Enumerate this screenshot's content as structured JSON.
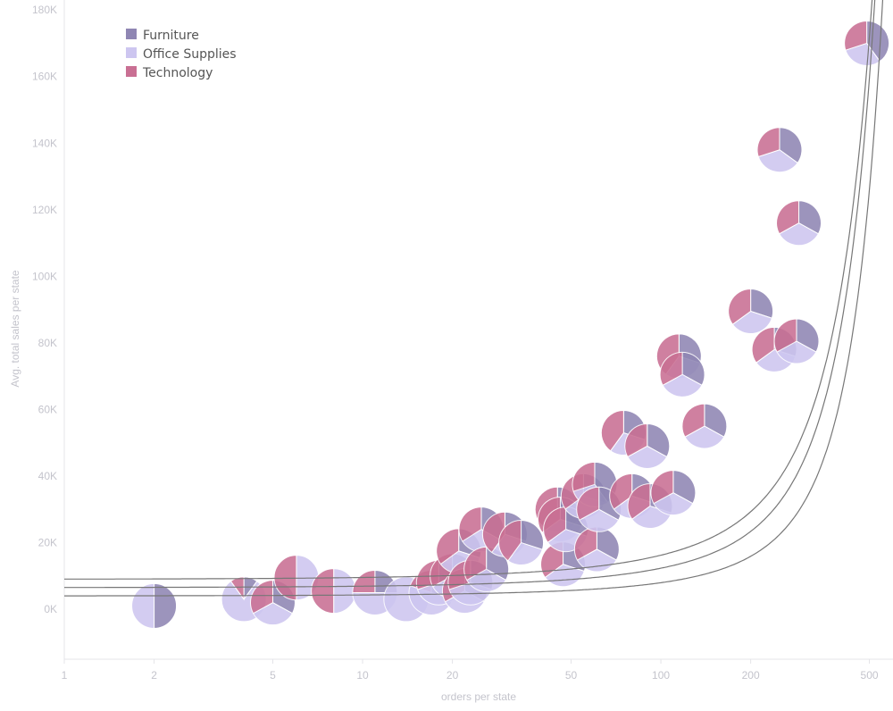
{
  "chart_data": {
    "type": "scatter",
    "subtype": "pie-markers",
    "xlabel": "orders per state",
    "ylabel": "Avg. total sales per state",
    "x_scale": "log",
    "xlim": [
      1,
      600
    ],
    "ylim": [
      -15000,
      183000
    ],
    "x_ticks": [
      1,
      2,
      5,
      10,
      20,
      50,
      100,
      200,
      500
    ],
    "y_ticks": [
      0,
      20000,
      40000,
      60000,
      80000,
      100000,
      120000,
      140000,
      160000,
      180000
    ],
    "y_tick_labels": [
      "0K",
      "20K",
      "40K",
      "60K",
      "80K",
      "100K",
      "120K",
      "140K",
      "160K",
      "180K"
    ],
    "grid": false,
    "legend_position": "top-left",
    "series": [
      {
        "name": "Furniture",
        "color": "#8f86b3"
      },
      {
        "name": "Office Supplies",
        "color": "#cdc6f0"
      },
      {
        "name": "Technology",
        "color": "#c96f93"
      }
    ],
    "points": [
      {
        "x": 2,
        "y": 1000,
        "shares": [
          0.5,
          0.5,
          0
        ]
      },
      {
        "x": 4,
        "y": 3000,
        "shares": [
          0.1,
          0.8,
          0.1
        ]
      },
      {
        "x": 5,
        "y": 2000,
        "shares": [
          0.33,
          0.34,
          0.33
        ]
      },
      {
        "x": 6,
        "y": 9500,
        "shares": [
          0,
          0.5,
          0.5
        ]
      },
      {
        "x": 8,
        "y": 5500,
        "shares": [
          0,
          0.5,
          0.5
        ]
      },
      {
        "x": 11,
        "y": 5000,
        "shares": [
          0.25,
          0.5,
          0.25
        ]
      },
      {
        "x": 14,
        "y": 3000,
        "shares": [
          0,
          1,
          0
        ]
      },
      {
        "x": 17,
        "y": 5000,
        "shares": [
          0.3,
          0.5,
          0.2
        ]
      },
      {
        "x": 18,
        "y": 8000,
        "shares": [
          0.3,
          0.4,
          0.3
        ]
      },
      {
        "x": 20,
        "y": 10000,
        "shares": [
          0.33,
          0.34,
          0.33
        ]
      },
      {
        "x": 21,
        "y": 17500,
        "shares": [
          0.3,
          0.35,
          0.35
        ]
      },
      {
        "x": 22,
        "y": 5500,
        "shares": [
          0.33,
          0.34,
          0.33
        ]
      },
      {
        "x": 23,
        "y": 8000,
        "shares": [
          0.3,
          0.4,
          0.3
        ]
      },
      {
        "x": 25,
        "y": 24000,
        "shares": [
          0.33,
          0.33,
          0.34
        ]
      },
      {
        "x": 26,
        "y": 12000,
        "shares": [
          0.33,
          0.34,
          0.33
        ]
      },
      {
        "x": 30,
        "y": 22500,
        "shares": [
          0.3,
          0.3,
          0.4
        ]
      },
      {
        "x": 34,
        "y": 20000,
        "shares": [
          0.3,
          0.3,
          0.4
        ]
      },
      {
        "x": 45,
        "y": 30000,
        "shares": [
          0.25,
          0.35,
          0.4
        ]
      },
      {
        "x": 46,
        "y": 27000,
        "shares": [
          0.3,
          0.35,
          0.35
        ]
      },
      {
        "x": 47,
        "y": 13500,
        "shares": [
          0.3,
          0.35,
          0.35
        ]
      },
      {
        "x": 48,
        "y": 24000,
        "shares": [
          0.3,
          0.35,
          0.35
        ]
      },
      {
        "x": 55,
        "y": 34000,
        "shares": [
          0.3,
          0.35,
          0.35
        ]
      },
      {
        "x": 60,
        "y": 37500,
        "shares": [
          0.4,
          0.3,
          0.3
        ]
      },
      {
        "x": 61,
        "y": 18000,
        "shares": [
          0.33,
          0.34,
          0.33
        ]
      },
      {
        "x": 62,
        "y": 30000,
        "shares": [
          0.33,
          0.34,
          0.33
        ]
      },
      {
        "x": 75,
        "y": 53000,
        "shares": [
          0.3,
          0.3,
          0.4
        ]
      },
      {
        "x": 80,
        "y": 34000,
        "shares": [
          0.3,
          0.35,
          0.35
        ]
      },
      {
        "x": 90,
        "y": 49000,
        "shares": [
          0.33,
          0.34,
          0.33
        ]
      },
      {
        "x": 92,
        "y": 31000,
        "shares": [
          0.3,
          0.35,
          0.35
        ]
      },
      {
        "x": 110,
        "y": 35000,
        "shares": [
          0.33,
          0.34,
          0.33
        ]
      },
      {
        "x": 115,
        "y": 76000,
        "shares": [
          0.3,
          0.3,
          0.4
        ]
      },
      {
        "x": 118,
        "y": 70500,
        "shares": [
          0.33,
          0.34,
          0.33
        ]
      },
      {
        "x": 140,
        "y": 55000,
        "shares": [
          0.33,
          0.34,
          0.33
        ]
      },
      {
        "x": 200,
        "y": 89500,
        "shares": [
          0.3,
          0.35,
          0.35
        ]
      },
      {
        "x": 240,
        "y": 78000,
        "shares": [
          0.3,
          0.35,
          0.35
        ]
      },
      {
        "x": 250,
        "y": 138000,
        "shares": [
          0.35,
          0.35,
          0.3
        ]
      },
      {
        "x": 285,
        "y": 80500,
        "shares": [
          0.33,
          0.34,
          0.33
        ]
      },
      {
        "x": 290,
        "y": 116000,
        "shares": [
          0.33,
          0.34,
          0.33
        ]
      },
      {
        "x": 490,
        "y": 170000,
        "shares": [
          0.4,
          0.3,
          0.3
        ]
      }
    ],
    "trend_lines": [
      {
        "kind": "exponential",
        "a": 9000,
        "b": 0.0059
      },
      {
        "kind": "exponential",
        "a": 6500,
        "b": 0.0064
      },
      {
        "kind": "exponential",
        "a": 4000,
        "b": 0.0069
      }
    ]
  }
}
